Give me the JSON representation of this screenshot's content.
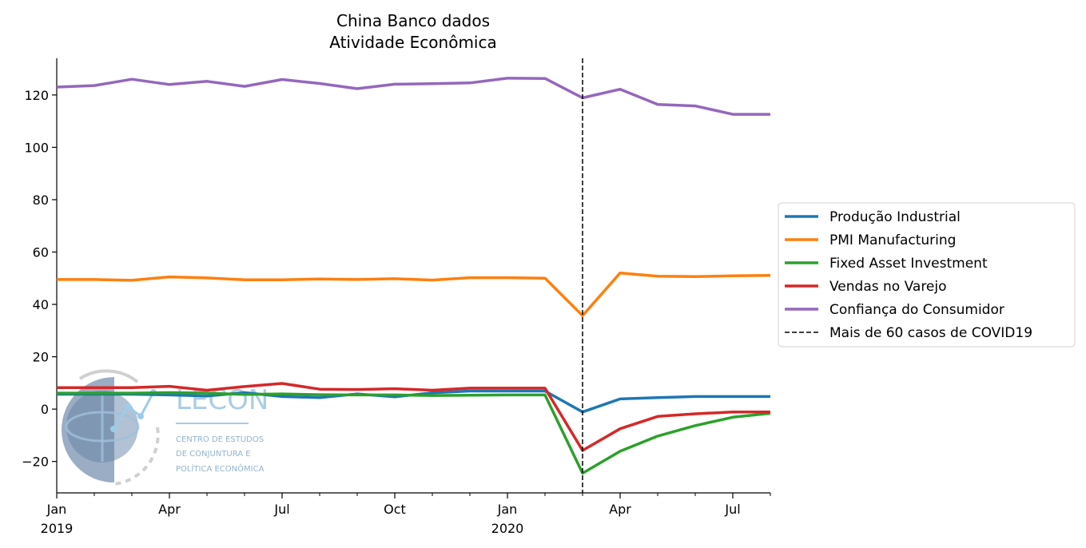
{
  "chart_data": {
    "type": "line",
    "title": [
      "China Banco dados",
      "Atividade Econômica"
    ],
    "xlabel": "",
    "ylabel": "",
    "x": [
      "2019-01",
      "2019-02",
      "2019-03",
      "2019-04",
      "2019-05",
      "2019-06",
      "2019-07",
      "2019-08",
      "2019-09",
      "2019-10",
      "2019-11",
      "2019-12",
      "2020-01",
      "2020-02",
      "2020-03",
      "2020-04",
      "2020-05",
      "2020-06",
      "2020-07",
      "2020-08"
    ],
    "xlim": [
      "2019-01",
      "2020-08"
    ],
    "ylim": [
      -32,
      134
    ],
    "y_ticks": [
      -20,
      0,
      20,
      40,
      60,
      80,
      100,
      120
    ],
    "y_tick_labels": [
      "−20",
      "0",
      "20",
      "40",
      "60",
      "80",
      "100",
      "120"
    ],
    "x_ticks": [
      {
        "x": "2019-01",
        "label": "Jan",
        "sublabel": "2019"
      },
      {
        "x": "2019-04",
        "label": "Apr",
        "sublabel": ""
      },
      {
        "x": "2019-07",
        "label": "Jul",
        "sublabel": ""
      },
      {
        "x": "2019-10",
        "label": "Oct",
        "sublabel": ""
      },
      {
        "x": "2020-01",
        "label": "Jan",
        "sublabel": "2020"
      },
      {
        "x": "2020-04",
        "label": "Apr",
        "sublabel": ""
      },
      {
        "x": "2020-07",
        "label": "Jul",
        "sublabel": ""
      }
    ],
    "grid": false,
    "legend_position": "right",
    "series": [
      {
        "name": "Produção Industrial",
        "color": "#1f77b4",
        "values": [
          5.7,
          5.7,
          5.7,
          5.4,
          5.0,
          6.3,
          4.8,
          4.4,
          5.8,
          4.7,
          6.2,
          6.9,
          6.9,
          6.9,
          -1.1,
          3.9,
          4.4,
          4.8,
          4.8,
          4.8
        ]
      },
      {
        "name": "PMI Manufacturing",
        "color": "#ff7f0e",
        "values": [
          49.5,
          49.5,
          49.2,
          50.5,
          50.1,
          49.4,
          49.4,
          49.7,
          49.5,
          49.8,
          49.3,
          50.2,
          50.2,
          50.0,
          35.7,
          52.0,
          50.8,
          50.6,
          50.9,
          51.1
        ]
      },
      {
        "name": "Fixed Asset Investment",
        "color": "#2ca02c",
        "values": [
          6.1,
          6.1,
          6.1,
          6.3,
          6.1,
          5.6,
          5.8,
          5.5,
          5.4,
          5.4,
          5.2,
          5.3,
          5.4,
          5.4,
          -24.5,
          -16.1,
          -10.3,
          -6.3,
          -3.1,
          -1.6
        ]
      },
      {
        "name": "Vendas no Varejo",
        "color": "#d62728",
        "values": [
          8.2,
          8.2,
          8.2,
          8.7,
          7.2,
          8.6,
          9.8,
          7.6,
          7.5,
          7.8,
          7.2,
          8.0,
          8.0,
          8.0,
          -15.8,
          -7.5,
          -2.8,
          -1.8,
          -1.1,
          -1.1
        ]
      },
      {
        "name": "Confiança do Consumidor",
        "color": "#9467bd",
        "values": [
          123.0,
          123.6,
          126.0,
          124.0,
          125.2,
          123.3,
          125.9,
          124.4,
          122.4,
          124.1,
          124.3,
          124.6,
          126.4,
          126.3,
          118.9,
          122.2,
          116.4,
          115.8,
          112.6,
          112.6
        ]
      }
    ],
    "vline": {
      "x": "2020-03",
      "label": "Mais de 60 casos de COVID19",
      "style": "dashed",
      "color": "#000000"
    }
  },
  "watermark": {
    "name": "LECON",
    "lines": [
      "CENTRO DE ESTUDOS",
      "DE CONJUNTURA E",
      "POLÍTICA ECONÔMICA"
    ]
  }
}
